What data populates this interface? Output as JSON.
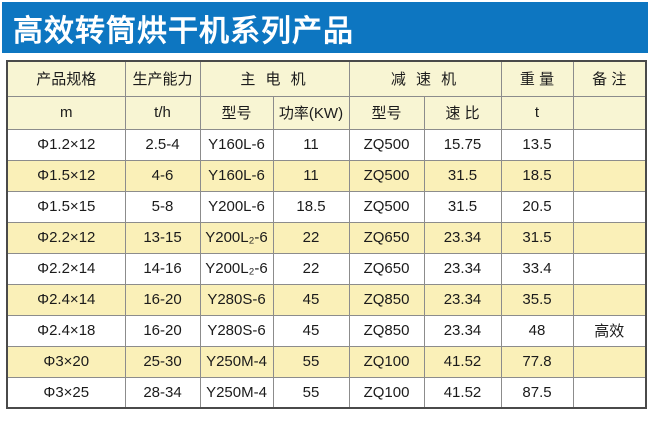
{
  "title": "高效转筒烘干机系列产品",
  "colors": {
    "title_bg": "#0D76C1",
    "header_bg": "#F8F5D3",
    "row_alt_bg": "#FAF0B8",
    "border_outer": "#4A4A4A",
    "border_inner": "#8C8C8C"
  },
  "table": {
    "header_groups": {
      "spec": "产品规格",
      "capacity": "生产能力",
      "motor": "主 电 机",
      "reducer": "减 速 机",
      "weight": "重 量",
      "remark": "备 注"
    },
    "header_units": {
      "spec": "m",
      "capacity": "t/h",
      "motor_model": "型号",
      "motor_power": "功率(KW)",
      "reducer_model": "型号",
      "reducer_ratio": "速 比",
      "weight": "t",
      "remark": ""
    },
    "rows": [
      [
        "Φ1.2×12",
        "2.5-4",
        "Y160L-6",
        "11",
        "ZQ500",
        "15.75",
        "13.5",
        ""
      ],
      [
        "Φ1.5×12",
        "4-6",
        "Y160L-6",
        "11",
        "ZQ500",
        "31.5",
        "18.5",
        ""
      ],
      [
        "Φ1.5×15",
        "5-8",
        "Y200L-6",
        "18.5",
        "ZQ500",
        "31.5",
        "20.5",
        ""
      ],
      [
        "Φ2.2×12",
        "13-15",
        "Y200L₂-6",
        "22",
        "ZQ650",
        "23.34",
        "31.5",
        ""
      ],
      [
        "Φ2.2×14",
        "14-16",
        "Y200L₂-6",
        "22",
        "ZQ650",
        "23.34",
        "33.4",
        ""
      ],
      [
        "Φ2.4×14",
        "16-20",
        "Y280S-6",
        "45",
        "ZQ850",
        "23.34",
        "35.5",
        ""
      ],
      [
        "Φ2.4×18",
        "16-20",
        "Y280S-6",
        "45",
        "ZQ850",
        "23.34",
        "48",
        "高效"
      ],
      [
        "Φ3×20",
        "25-30",
        "Y250M-4",
        "55",
        "ZQ100",
        "41.52",
        "77.8",
        ""
      ],
      [
        "Φ3×25",
        "28-34",
        "Y250M-4",
        "55",
        "ZQ100",
        "41.52",
        "87.5",
        ""
      ]
    ]
  }
}
